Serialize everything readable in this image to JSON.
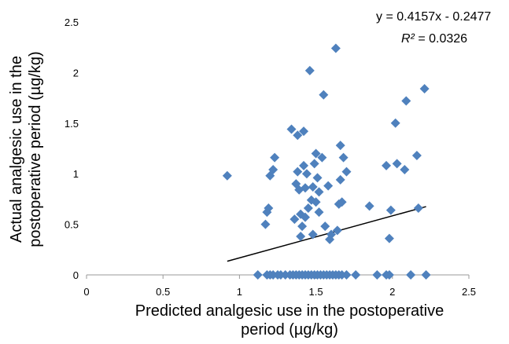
{
  "chart_data": {
    "type": "scatter",
    "title": "",
    "xlabel_lines": [
      "Predicted analgesic use in the postoperative",
      "period (µg/kg)"
    ],
    "ylabel_lines": [
      "Actual analgesic use in the",
      "postoperative period (µg/kg)"
    ],
    "xlim": [
      0,
      2.5
    ],
    "ylim": [
      0,
      2.5
    ],
    "x_ticks": [
      "0",
      "0.5",
      "1",
      "1.5",
      "2",
      "2.5"
    ],
    "y_ticks": [
      "0",
      "0.5",
      "1",
      "1.5",
      "2",
      "2.5"
    ],
    "grid": false,
    "marker_color": "#4f81bd",
    "trendline_color": "#000000",
    "trendline": {
      "slope": 0.4157,
      "intercept": -0.2477,
      "x_range": [
        0.92,
        2.22
      ]
    },
    "equation": "y = 0.4157x - 0.2477",
    "r2_label": "R²",
    "r2_value": " = 0.0326",
    "points": [
      [
        0.92,
        0.98
      ],
      [
        1.17,
        0.5
      ],
      [
        1.18,
        0.62
      ],
      [
        1.19,
        0.66
      ],
      [
        1.2,
        0.98
      ],
      [
        1.22,
        1.04
      ],
      [
        1.23,
        1.16
      ],
      [
        1.34,
        1.44
      ],
      [
        1.36,
        0.55
      ],
      [
        1.37,
        0.9
      ],
      [
        1.38,
        1.02
      ],
      [
        1.38,
        1.38
      ],
      [
        1.39,
        0.84
      ],
      [
        1.4,
        0.6
      ],
      [
        1.4,
        0.38
      ],
      [
        1.41,
        0.48
      ],
      [
        1.42,
        1.42
      ],
      [
        1.42,
        1.08
      ],
      [
        1.43,
        0.86
      ],
      [
        1.43,
        0.57
      ],
      [
        1.44,
        1.0
      ],
      [
        1.45,
        0.66
      ],
      [
        1.46,
        2.02
      ],
      [
        1.47,
        0.74
      ],
      [
        1.48,
        0.4
      ],
      [
        1.48,
        0.87
      ],
      [
        1.49,
        1.1
      ],
      [
        1.5,
        1.2
      ],
      [
        1.5,
        0.72
      ],
      [
        1.51,
        0.96
      ],
      [
        1.52,
        0.82
      ],
      [
        1.52,
        0.62
      ],
      [
        1.54,
        1.16
      ],
      [
        1.55,
        1.78
      ],
      [
        1.56,
        0.48
      ],
      [
        1.58,
        0.88
      ],
      [
        1.59,
        0.35
      ],
      [
        1.6,
        0.4
      ],
      [
        1.63,
        2.24
      ],
      [
        1.64,
        0.44
      ],
      [
        1.65,
        0.7
      ],
      [
        1.66,
        1.28
      ],
      [
        1.66,
        0.94
      ],
      [
        1.67,
        0.72
      ],
      [
        1.68,
        1.16
      ],
      [
        1.7,
        1.02
      ],
      [
        1.85,
        0.68
      ],
      [
        1.96,
        1.08
      ],
      [
        1.98,
        0.36
      ],
      [
        1.99,
        0.64
      ],
      [
        2.02,
        1.5
      ],
      [
        2.03,
        1.1
      ],
      [
        2.08,
        1.04
      ],
      [
        2.09,
        1.72
      ],
      [
        2.16,
        1.18
      ],
      [
        2.17,
        0.66
      ],
      [
        2.21,
        1.84
      ],
      [
        1.12,
        0
      ],
      [
        1.18,
        0
      ],
      [
        1.2,
        0
      ],
      [
        1.22,
        0
      ],
      [
        1.25,
        0
      ],
      [
        1.27,
        0
      ],
      [
        1.3,
        0
      ],
      [
        1.33,
        0
      ],
      [
        1.35,
        0
      ],
      [
        1.37,
        0
      ],
      [
        1.39,
        0
      ],
      [
        1.41,
        0
      ],
      [
        1.43,
        0
      ],
      [
        1.45,
        0
      ],
      [
        1.47,
        0
      ],
      [
        1.49,
        0
      ],
      [
        1.51,
        0
      ],
      [
        1.53,
        0
      ],
      [
        1.55,
        0
      ],
      [
        1.57,
        0
      ],
      [
        1.59,
        0
      ],
      [
        1.61,
        0
      ],
      [
        1.63,
        0
      ],
      [
        1.65,
        0
      ],
      [
        1.67,
        0
      ],
      [
        1.7,
        0
      ],
      [
        1.76,
        0
      ],
      [
        1.9,
        0
      ],
      [
        1.96,
        0
      ],
      [
        1.98,
        0
      ],
      [
        2.12,
        0
      ],
      [
        2.22,
        0
      ]
    ]
  }
}
